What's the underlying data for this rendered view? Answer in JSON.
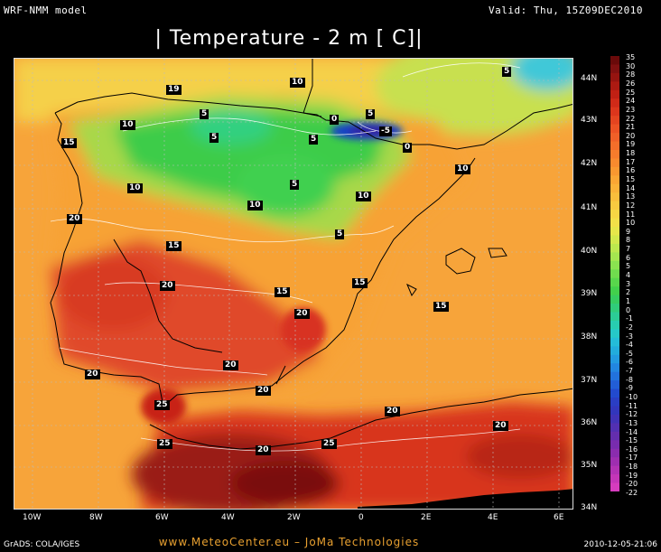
{
  "header": {
    "model": "WRF-NMM model",
    "valid": "Valid: Thu, 15Z09DEC2010",
    "title": "| Temperature - 2 m [   C]|"
  },
  "lat_labels": [
    "44N",
    "43N",
    "42N",
    "41N",
    "40N",
    "39N",
    "38N",
    "37N",
    "36N",
    "35N",
    "34N"
  ],
  "lon_labels": [
    "10W",
    "8W",
    "6W",
    "4W",
    "2W",
    "0",
    "2E",
    "4E",
    "6E"
  ],
  "legend_values": [
    "35",
    "30",
    "28",
    "26",
    "25",
    "24",
    "23",
    "22",
    "21",
    "20",
    "19",
    "18",
    "17",
    "16",
    "15",
    "14",
    "13",
    "12",
    "11",
    "10",
    "9",
    "8",
    "7",
    "6",
    "5",
    "4",
    "3",
    "2",
    "1",
    "0",
    "-1",
    "-2",
    "-3",
    "-4",
    "-5",
    "-6",
    "-7",
    "-8",
    "-9",
    "-10",
    "-11",
    "-12",
    "-13",
    "-14",
    "-15",
    "-16",
    "-17",
    "-18",
    "-19",
    "-20",
    "-22"
  ],
  "contour_labels": [
    "10",
    "19",
    "5",
    "10",
    "5",
    "0",
    "5",
    "-5",
    "15",
    "5",
    "5",
    "0",
    "10",
    "10",
    "10",
    "5",
    "10",
    "20",
    "5",
    "15",
    "20",
    "15",
    "15",
    "20",
    "15",
    "20",
    "20",
    "20",
    "25",
    "20",
    "20",
    "25",
    "20",
    "25"
  ],
  "colors": {
    "very_hot": "#7a1010",
    "hot": "#d42a20",
    "warm": "#f05a28",
    "mild": "#f79530",
    "sea": "#f6a83a",
    "cool": "#f5d84a",
    "cold": "#3bd23e",
    "freezing": "#2ad5b0",
    "subzero": "#1840c8"
  },
  "footer": {
    "left": "GrADS: COLA/IGES",
    "center": "www.MeteoCenter.eu  –  JoMa Technologies",
    "right": "2010-12-05-21:06"
  }
}
